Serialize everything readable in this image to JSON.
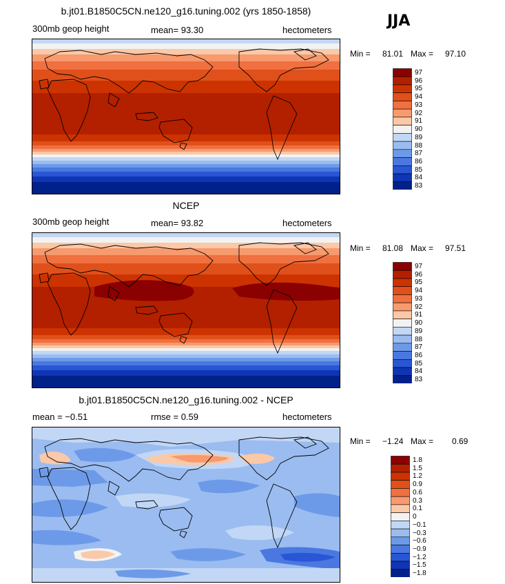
{
  "season": "JJA",
  "chart_data": [
    {
      "type": "heatmap",
      "title": "b.jt01.B1850C5CN.ne120_g16.tuning.002 (yrs 1850-1858)",
      "left_label": "300mb geop height",
      "center_label": "mean=  93.30",
      "units": "hectometers",
      "min_label": "Min =",
      "min": "81.01",
      "max_label": "Max =",
      "max": "97.10",
      "levels": [
        "97",
        "96",
        "95",
        "94",
        "93",
        "92",
        "91",
        "90",
        "89",
        "88",
        "87",
        "86",
        "85",
        "84",
        "83"
      ],
      "colors": [
        "#8b0000",
        "#b32000",
        "#cc3300",
        "#e0501a",
        "#f07040",
        "#f79a6e",
        "#fbc8a8",
        "#f2f2f2",
        "#c2d7f5",
        "#9abcf0",
        "#6d9ae8",
        "#4a78e0",
        "#2856d4",
        "#0f35b5",
        "#00208a"
      ]
    },
    {
      "type": "heatmap",
      "title": "NCEP",
      "left_label": "300mb geop height",
      "center_label": "mean=  93.82",
      "units": "hectometers",
      "min_label": "Min =",
      "min": "81.08",
      "max_label": "Max =",
      "max": "97.51",
      "levels": [
        "97",
        "96",
        "95",
        "94",
        "93",
        "92",
        "91",
        "90",
        "89",
        "88",
        "87",
        "86",
        "85",
        "84",
        "83"
      ],
      "colors": [
        "#8b0000",
        "#b32000",
        "#cc3300",
        "#e0501a",
        "#f07040",
        "#f79a6e",
        "#fbc8a8",
        "#f2f2f2",
        "#c2d7f5",
        "#9abcf0",
        "#6d9ae8",
        "#4a78e0",
        "#2856d4",
        "#0f35b5",
        "#00208a"
      ]
    },
    {
      "type": "heatmap",
      "title": "b.jt01.B1850C5CN.ne120_g16.tuning.002 - NCEP",
      "left_label": "mean =  −0.51",
      "center_label": "rmse =    0.59",
      "units": "hectometers",
      "min_label": "Min =",
      "min": "−1.24",
      "max_label": "Max =",
      "max": "0.69",
      "levels": [
        "1.8",
        "1.5",
        "1.2",
        "0.9",
        "0.6",
        "0.3",
        "0.1",
        "0",
        "−0.1",
        "−0.3",
        "−0.6",
        "−0.9",
        "−1.2",
        "−1.5",
        "−1.8"
      ],
      "colors": [
        "#8b0000",
        "#b32000",
        "#cc3300",
        "#e0501a",
        "#f07040",
        "#f79a6e",
        "#fbc8a8",
        "#f2f2f2",
        "#c2d7f5",
        "#9abcf0",
        "#6d9ae8",
        "#4a78e0",
        "#2856d4",
        "#0f35b5",
        "#00208a"
      ]
    }
  ]
}
